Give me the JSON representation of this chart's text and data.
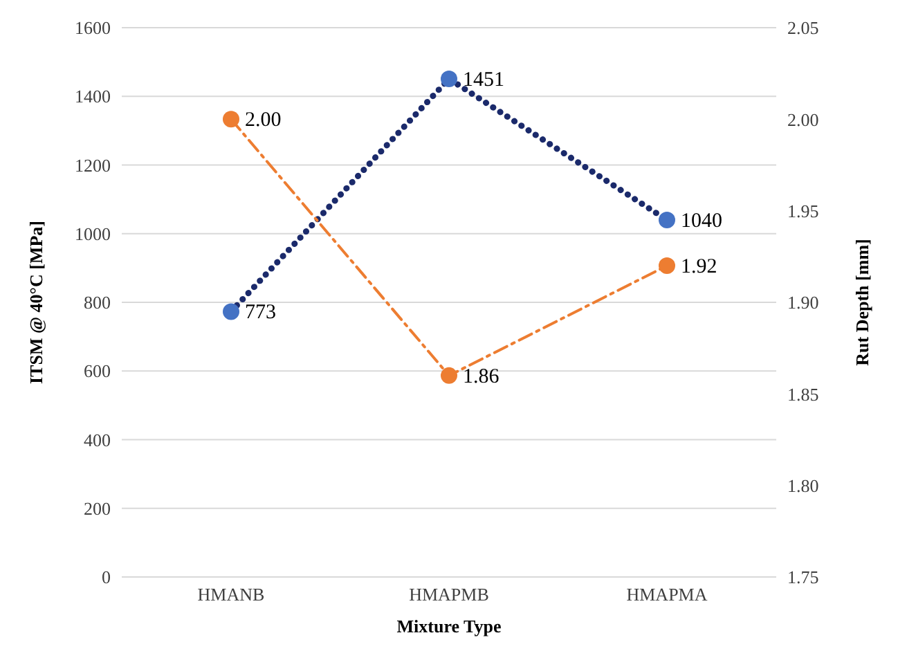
{
  "chart_data": {
    "type": "line",
    "xlabel": "Mixture Type",
    "ylabel": "ITSM @ 40°C [MPa]",
    "y2label": "Rut Depth [mm]",
    "categories": [
      "HMANB",
      "HMAPMB",
      "HMAPMA"
    ],
    "series": [
      {
        "color": "#1b2a6b",
        "colors": [
          "#4472c4",
          "#4472c4",
          "#4472c4"
        ],
        "values": [
          773,
          1451,
          1040
        ],
        "value_labels": [
          "773",
          "1451",
          "1040"
        ],
        "line_style": "dotted"
      },
      {
        "color": "#ed7d31",
        "colors": [
          "#ed7d31",
          "#ed7d31",
          "#ed7d31"
        ],
        "values": [
          2.0,
          1.86,
          1.92
        ],
        "value_labels": [
          "2.00",
          "1.86",
          "1.92"
        ],
        "axis": "y2",
        "line_style": "dashed"
      }
    ],
    "ylim": [
      0,
      1600
    ],
    "yticks": [
      0,
      200,
      400,
      600,
      800,
      1000,
      1200,
      1400,
      1600
    ],
    "y2lim": [
      1.75,
      2.05
    ],
    "y2ticks": [
      1.75,
      {
        "value": 1.8,
        "label": "1.80"
      },
      1.85,
      {
        "value": 1.9,
        "label": "1.90"
      },
      1.95,
      {
        "value": 2.0,
        "label": "2.00"
      },
      2.05
    ],
    "grid": "y",
    "legend": false,
    "marker": "circle"
  }
}
